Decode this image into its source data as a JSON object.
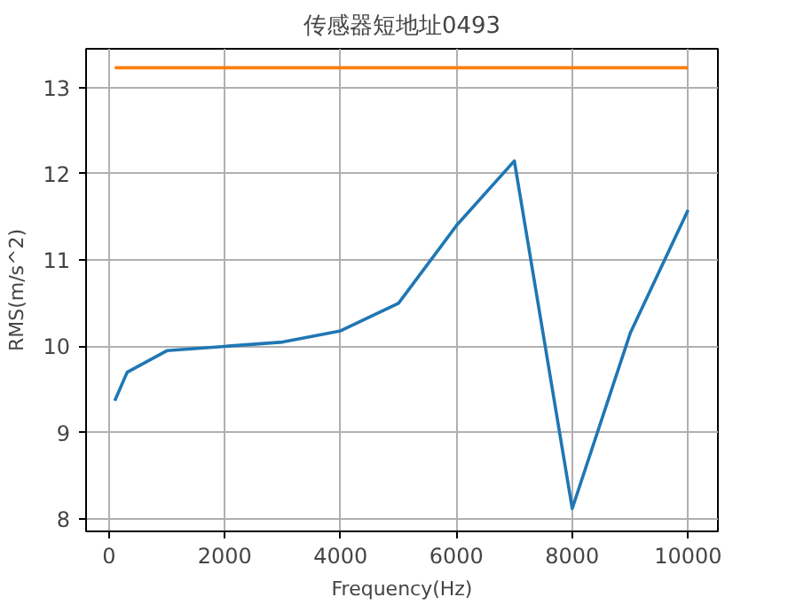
{
  "chart_data": {
    "type": "line",
    "title": "传感器短地址0493",
    "xlabel": "Frequency(Hz)",
    "ylabel": "RMS(m/s^2)",
    "x": [
      100,
      315,
      1000,
      2000,
      3000,
      4000,
      5000,
      6000,
      7000,
      8000,
      9000,
      10000
    ],
    "series": [
      {
        "color": "#1f77b4",
        "values": [
          9.37,
          9.7,
          9.95,
          10.0,
          10.05,
          10.18,
          10.5,
          11.4,
          12.15,
          8.12,
          10.15,
          11.58
        ]
      },
      {
        "color": "#ff7f0e",
        "values": [
          13.23,
          13.23,
          13.23,
          13.23,
          13.23,
          13.23,
          13.23,
          13.23,
          13.23,
          13.23,
          13.23,
          13.23
        ]
      }
    ],
    "xlim": [
      -395,
      10515
    ],
    "ylim": [
      7.855,
      13.45
    ],
    "xticks": [
      0,
      2000,
      4000,
      6000,
      8000,
      10000
    ],
    "yticks": [
      8,
      9,
      10,
      11,
      12,
      13
    ],
    "grid": true
  }
}
